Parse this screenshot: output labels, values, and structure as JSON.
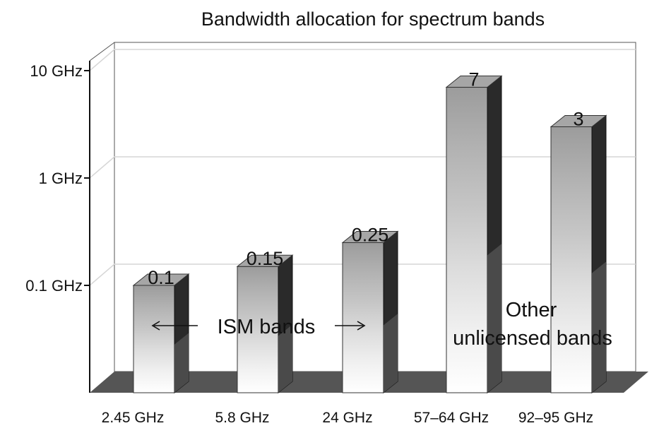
{
  "chart_data": {
    "type": "bar",
    "title": "Bandwidth allocation for spectrum bands",
    "y_scale": "log",
    "ylim": [
      0.01,
      10
    ],
    "y_ticks": [
      {
        "value": 0.1,
        "label": "0.1 GHz"
      },
      {
        "value": 1,
        "label": "1 GHz"
      },
      {
        "value": 10,
        "label": "10 GHz"
      }
    ],
    "categories": [
      "2.45 GHz",
      "5.8 GHz",
      "24 GHz",
      "57–64 GHz",
      "92–95 GHz"
    ],
    "values": [
      0.1,
      0.15,
      0.25,
      7,
      3
    ],
    "value_labels": [
      "0.1",
      "0.15",
      "0.25",
      "7",
      "3"
    ],
    "annotations": [
      {
        "text": "ISM bands",
        "arrows": "both"
      },
      {
        "lines": [
          "Other",
          "unlicensed bands"
        ]
      }
    ],
    "colors": {
      "floor": "#555555",
      "side_dark": "#2a2a2a",
      "side_mid": "#4a4a4a",
      "top_face": "#a6a6a6",
      "grid": "#d6d6d6"
    },
    "bar_gradient": [
      "#ffffff",
      "#f0f0f0",
      "#dddddd",
      "#c6c6c6",
      "#b2b2b2",
      "#9c9c9c"
    ]
  }
}
